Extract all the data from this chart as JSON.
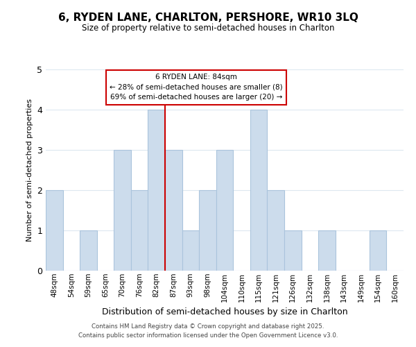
{
  "title": "6, RYDEN LANE, CHARLTON, PERSHORE, WR10 3LQ",
  "subtitle": "Size of property relative to semi-detached houses in Charlton",
  "xlabel": "Distribution of semi-detached houses by size in Charlton",
  "ylabel": "Number of semi-detached properties",
  "categories": [
    "48sqm",
    "54sqm",
    "59sqm",
    "65sqm",
    "70sqm",
    "76sqm",
    "82sqm",
    "87sqm",
    "93sqm",
    "98sqm",
    "104sqm",
    "110sqm",
    "115sqm",
    "121sqm",
    "126sqm",
    "132sqm",
    "138sqm",
    "143sqm",
    "149sqm",
    "154sqm",
    "160sqm"
  ],
  "values": [
    2,
    0,
    1,
    0,
    3,
    2,
    4,
    3,
    1,
    2,
    3,
    0,
    4,
    2,
    1,
    0,
    1,
    0,
    0,
    1,
    0
  ],
  "bar_color": "#ccdcec",
  "bar_edge_color": "#aac4dc",
  "annotation_title": "6 RYDEN LANE: 84sqm",
  "annotation_line1": "← 28% of semi-detached houses are smaller (8)",
  "annotation_line2": "69% of semi-detached houses are larger (20) →",
  "red_line_x": 6.5,
  "ylim": [
    0,
    5
  ],
  "yticks": [
    0,
    1,
    2,
    3,
    4,
    5
  ],
  "footer_line1": "Contains HM Land Registry data © Crown copyright and database right 2025.",
  "footer_line2": "Contains public sector information licensed under the Open Government Licence v3.0.",
  "background_color": "#ffffff",
  "plot_bg_color": "#ffffff",
  "grid_color": "#dde8f0",
  "annot_box_color": "#ffffff",
  "annot_edge_color": "#cc0000"
}
